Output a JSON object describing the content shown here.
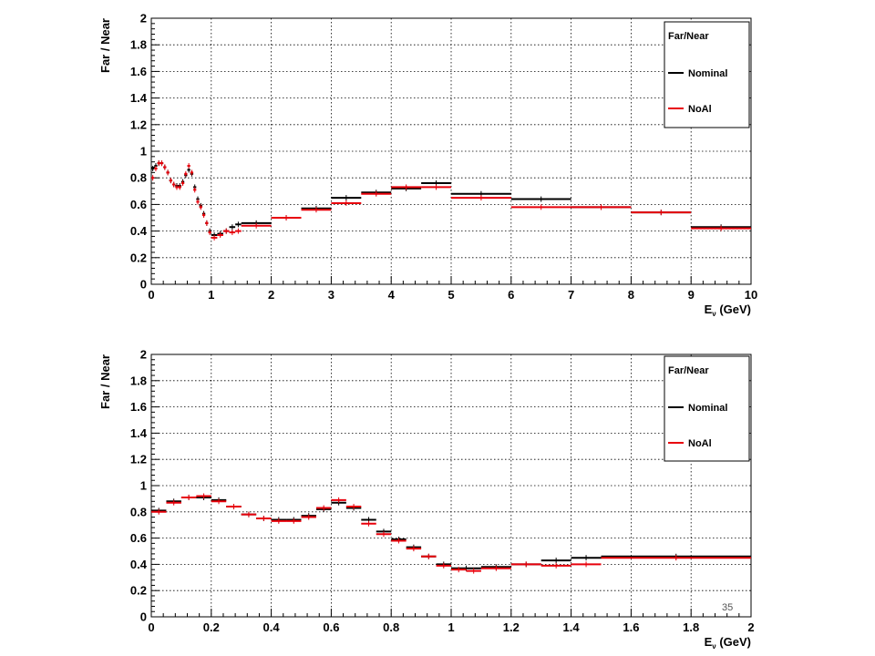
{
  "page_number": "35",
  "chart_data": [
    {
      "type": "step",
      "xlabel": "E",
      "xlabel_sub": "ν",
      "xlabel_unit": "(GeV)",
      "ylabel": "Far / Near",
      "xlim": [
        0,
        10
      ],
      "ylim": [
        0,
        2
      ],
      "x_ticks": [
        "0",
        "1",
        "2",
        "3",
        "4",
        "5",
        "6",
        "7",
        "8",
        "9",
        "10"
      ],
      "y_ticks": [
        "0",
        "0.2",
        "0.4",
        "0.6",
        "0.8",
        "1",
        "1.2",
        "1.4",
        "1.6",
        "1.8",
        "2"
      ],
      "grid": true,
      "legend": {
        "title": "Far/Near",
        "placement": "top-right",
        "entries": [
          {
            "label": "Nominal",
            "color": "#000000"
          },
          {
            "label": "NoAl",
            "color": "#e8000b"
          }
        ]
      },
      "series": [
        {
          "name": "Nominal",
          "color": "#000000",
          "bins": [
            [
              0.0,
              0.05,
              0.87
            ],
            [
              0.05,
              0.1,
              0.89
            ],
            [
              0.1,
              0.15,
              0.91
            ],
            [
              0.15,
              0.2,
              0.91
            ],
            [
              0.2,
              0.25,
              0.88
            ],
            [
              0.25,
              0.3,
              0.84
            ],
            [
              0.3,
              0.35,
              0.78
            ],
            [
              0.35,
              0.4,
              0.75
            ],
            [
              0.4,
              0.45,
              0.74
            ],
            [
              0.45,
              0.5,
              0.74
            ],
            [
              0.5,
              0.55,
              0.77
            ],
            [
              0.55,
              0.6,
              0.82
            ],
            [
              0.6,
              0.65,
              0.86
            ],
            [
              0.65,
              0.7,
              0.83
            ],
            [
              0.7,
              0.75,
              0.73
            ],
            [
              0.75,
              0.8,
              0.64
            ],
            [
              0.8,
              0.85,
              0.59
            ],
            [
              0.85,
              0.9,
              0.53
            ],
            [
              0.9,
              0.95,
              0.46
            ],
            [
              0.95,
              1.0,
              0.4
            ],
            [
              1.0,
              1.1,
              0.37
            ],
            [
              1.1,
              1.2,
              0.38
            ],
            [
              1.2,
              1.3,
              0.4
            ],
            [
              1.3,
              1.4,
              0.43
            ],
            [
              1.4,
              1.5,
              0.45
            ],
            [
              1.5,
              2.0,
              0.46
            ],
            [
              2.0,
              2.5,
              0.5
            ],
            [
              2.5,
              3.0,
              0.57
            ],
            [
              3.0,
              3.5,
              0.65
            ],
            [
              3.5,
              4.0,
              0.69
            ],
            [
              4.0,
              4.5,
              0.72
            ],
            [
              4.5,
              5.0,
              0.76
            ],
            [
              5.0,
              6.0,
              0.68
            ],
            [
              6.0,
              7.0,
              0.64
            ],
            [
              7.0,
              8.0,
              0.58
            ],
            [
              8.0,
              9.0,
              0.54
            ],
            [
              9.0,
              10.0,
              0.43
            ]
          ]
        },
        {
          "name": "NoAl",
          "color": "#e8000b",
          "bins": [
            [
              0.0,
              0.05,
              0.8
            ],
            [
              0.05,
              0.1,
              0.87
            ],
            [
              0.1,
              0.15,
              0.91
            ],
            [
              0.15,
              0.2,
              0.91
            ],
            [
              0.2,
              0.25,
              0.88
            ],
            [
              0.25,
              0.3,
              0.84
            ],
            [
              0.3,
              0.35,
              0.78
            ],
            [
              0.35,
              0.4,
              0.75
            ],
            [
              0.4,
              0.45,
              0.73
            ],
            [
              0.45,
              0.5,
              0.73
            ],
            [
              0.5,
              0.55,
              0.76
            ],
            [
              0.55,
              0.6,
              0.83
            ],
            [
              0.6,
              0.65,
              0.89
            ],
            [
              0.65,
              0.7,
              0.84
            ],
            [
              0.7,
              0.75,
              0.71
            ],
            [
              0.75,
              0.8,
              0.62
            ],
            [
              0.8,
              0.85,
              0.58
            ],
            [
              0.85,
              0.9,
              0.52
            ],
            [
              0.9,
              0.95,
              0.46
            ],
            [
              0.95,
              1.0,
              0.39
            ],
            [
              1.0,
              1.1,
              0.35
            ],
            [
              1.1,
              1.2,
              0.37
            ],
            [
              1.2,
              1.3,
              0.4
            ],
            [
              1.3,
              1.4,
              0.39
            ],
            [
              1.4,
              1.5,
              0.4
            ],
            [
              1.5,
              2.0,
              0.44
            ],
            [
              2.0,
              2.5,
              0.5
            ],
            [
              2.5,
              3.0,
              0.56
            ],
            [
              3.0,
              3.5,
              0.61
            ],
            [
              3.5,
              4.0,
              0.68
            ],
            [
              4.0,
              4.5,
              0.73
            ],
            [
              4.5,
              5.0,
              0.73
            ],
            [
              5.0,
              6.0,
              0.65
            ],
            [
              6.0,
              7.0,
              0.58
            ],
            [
              7.0,
              8.0,
              0.58
            ],
            [
              8.0,
              9.0,
              0.54
            ],
            [
              9.0,
              10.0,
              0.42
            ]
          ]
        }
      ]
    },
    {
      "type": "step",
      "xlabel": "E",
      "xlabel_sub": "ν",
      "xlabel_unit": "(GeV)",
      "ylabel": "Far / Near",
      "xlim": [
        0,
        2
      ],
      "ylim": [
        0,
        2
      ],
      "x_ticks": [
        "0",
        "0.2",
        "0.4",
        "0.6",
        "0.8",
        "1",
        "1.2",
        "1.4",
        "1.6",
        "1.8",
        "2"
      ],
      "y_ticks": [
        "0",
        "0.2",
        "0.4",
        "0.6",
        "0.8",
        "1",
        "1.2",
        "1.4",
        "1.6",
        "1.8",
        "2"
      ],
      "grid": true,
      "legend": {
        "title": "Far/Near",
        "placement": "top-right",
        "entries": [
          {
            "label": "Nominal",
            "color": "#000000"
          },
          {
            "label": "NoAl",
            "color": "#e8000b"
          }
        ]
      },
      "series": [
        {
          "name": "Nominal",
          "color": "#000000",
          "bins": [
            [
              0.0,
              0.05,
              0.81
            ],
            [
              0.05,
              0.1,
              0.88
            ],
            [
              0.1,
              0.15,
              0.91
            ],
            [
              0.15,
              0.2,
              0.91
            ],
            [
              0.2,
              0.25,
              0.89
            ],
            [
              0.25,
              0.3,
              0.84
            ],
            [
              0.3,
              0.35,
              0.78
            ],
            [
              0.35,
              0.4,
              0.75
            ],
            [
              0.4,
              0.45,
              0.74
            ],
            [
              0.45,
              0.5,
              0.74
            ],
            [
              0.5,
              0.55,
              0.77
            ],
            [
              0.55,
              0.6,
              0.82
            ],
            [
              0.6,
              0.65,
              0.87
            ],
            [
              0.65,
              0.7,
              0.83
            ],
            [
              0.7,
              0.75,
              0.74
            ],
            [
              0.75,
              0.8,
              0.65
            ],
            [
              0.8,
              0.85,
              0.59
            ],
            [
              0.85,
              0.9,
              0.53
            ],
            [
              0.9,
              0.95,
              0.46
            ],
            [
              0.95,
              1.0,
              0.4
            ],
            [
              1.0,
              1.1,
              0.37
            ],
            [
              1.1,
              1.2,
              0.38
            ],
            [
              1.2,
              1.3,
              0.4
            ],
            [
              1.3,
              1.4,
              0.43
            ],
            [
              1.4,
              1.5,
              0.45
            ],
            [
              1.5,
              2.0,
              0.46
            ]
          ]
        },
        {
          "name": "NoAl",
          "color": "#e8000b",
          "bins": [
            [
              0.0,
              0.05,
              0.8
            ],
            [
              0.05,
              0.1,
              0.87
            ],
            [
              0.1,
              0.15,
              0.91
            ],
            [
              0.15,
              0.2,
              0.92
            ],
            [
              0.2,
              0.25,
              0.88
            ],
            [
              0.25,
              0.3,
              0.84
            ],
            [
              0.3,
              0.35,
              0.78
            ],
            [
              0.35,
              0.4,
              0.75
            ],
            [
              0.4,
              0.45,
              0.73
            ],
            [
              0.45,
              0.5,
              0.73
            ],
            [
              0.5,
              0.55,
              0.76
            ],
            [
              0.55,
              0.6,
              0.83
            ],
            [
              0.6,
              0.65,
              0.89
            ],
            [
              0.65,
              0.7,
              0.84
            ],
            [
              0.7,
              0.75,
              0.71
            ],
            [
              0.75,
              0.8,
              0.63
            ],
            [
              0.8,
              0.85,
              0.58
            ],
            [
              0.85,
              0.9,
              0.52
            ],
            [
              0.9,
              0.95,
              0.46
            ],
            [
              0.95,
              1.0,
              0.39
            ],
            [
              1.0,
              1.05,
              0.36
            ],
            [
              1.05,
              1.1,
              0.35
            ],
            [
              1.1,
              1.2,
              0.37
            ],
            [
              1.2,
              1.3,
              0.4
            ],
            [
              1.3,
              1.4,
              0.39
            ],
            [
              1.4,
              1.5,
              0.4
            ],
            [
              1.5,
              2.0,
              0.45
            ]
          ]
        }
      ]
    }
  ]
}
